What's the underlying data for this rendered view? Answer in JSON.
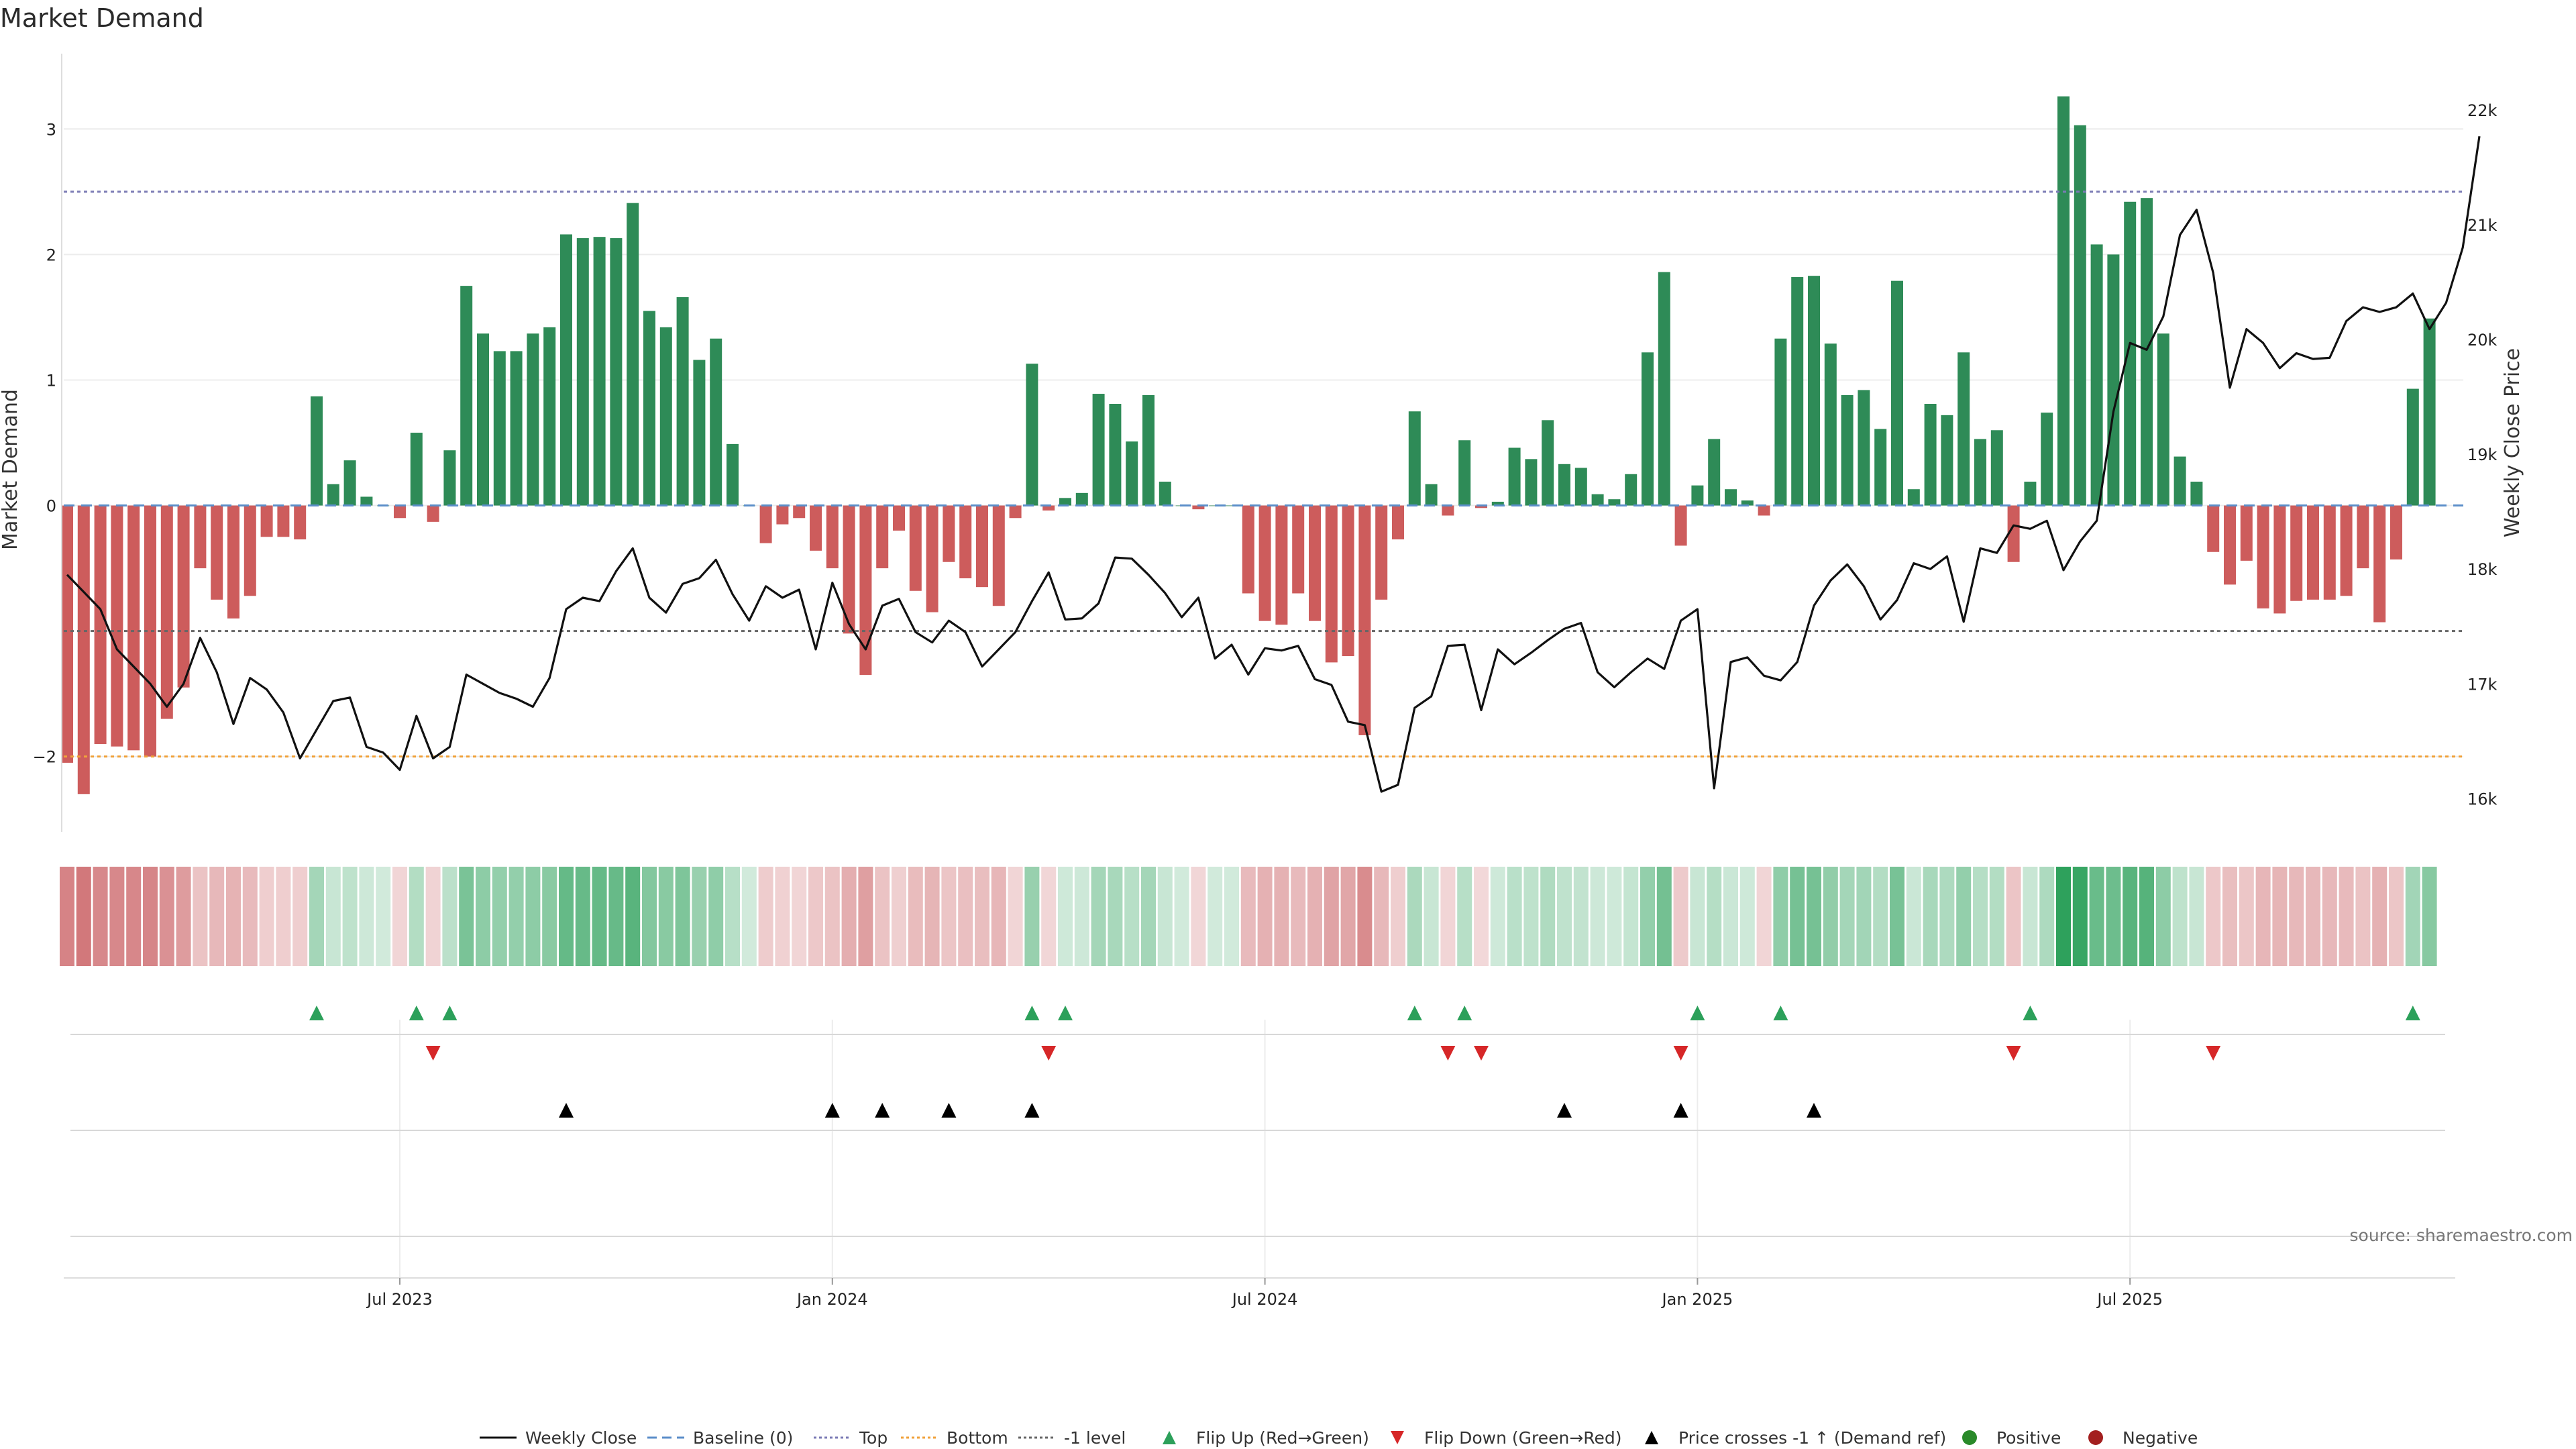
{
  "chart_data": {
    "type": "bar",
    "title": "Market Demand",
    "ylabel_left": "Market Demand",
    "ylabel_right": "Weekly Close Price",
    "source": "source: sharemaestro.com",
    "ylim_left": [
      -2.6,
      3.6
    ],
    "yticks_left": [
      "3",
      "2",
      "1",
      "0",
      "−2"
    ],
    "ytick_values_left": [
      3,
      2,
      1,
      0,
      -2
    ],
    "ylim_right": [
      15710,
      22490
    ],
    "yticks_right": [
      "22k",
      "21k",
      "20k",
      "19k",
      "18k",
      "17k",
      "16k"
    ],
    "ytick_values_right": [
      22000,
      21000,
      20000,
      19000,
      18000,
      17000,
      16000
    ],
    "reference_lines": {
      "top": 2.5,
      "bottom": -2.0,
      "minus_one": -1.0,
      "baseline": 0
    },
    "x_tick_labels": [
      "Jul 2023",
      "Jan 2024",
      "Jul 2024",
      "Jan 2025",
      "Jul 2025"
    ],
    "x_tick_week_index": [
      20,
      46,
      72,
      98,
      124
    ],
    "first_week": "2023-02-17",
    "demand": [
      -2.05,
      -2.3,
      -1.9,
      -1.92,
      -1.95,
      -2.0,
      -1.7,
      -1.45,
      -0.5,
      -0.75,
      -0.9,
      -0.72,
      -0.25,
      -0.25,
      -0.27,
      0.87,
      0.17,
      0.36,
      0.07,
      0.0,
      -0.1,
      0.58,
      -0.13,
      0.44,
      1.75,
      1.37,
      1.23,
      1.23,
      1.37,
      1.42,
      2.16,
      2.13,
      2.14,
      2.13,
      2.41,
      1.55,
      1.42,
      1.66,
      1.16,
      1.33,
      0.49,
      0.0,
      -0.3,
      -0.15,
      -0.1,
      -0.36,
      -0.5,
      -1.02,
      -1.35,
      -0.5,
      -0.2,
      -0.68,
      -0.85,
      -0.45,
      -0.58,
      -0.65,
      -0.8,
      -0.1,
      1.13,
      -0.04,
      0.06,
      0.1,
      0.89,
      0.81,
      0.51,
      0.88,
      0.19,
      0.0,
      -0.03,
      0.0,
      0.0,
      -0.7,
      -0.92,
      -0.95,
      -0.7,
      -0.92,
      -1.25,
      -1.2,
      -1.83,
      -0.75,
      -0.27,
      0.75,
      0.17,
      -0.08,
      0.52,
      -0.02,
      0.03,
      0.46,
      0.37,
      0.68,
      0.33,
      0.3,
      0.09,
      0.05,
      0.25,
      1.22,
      1.86,
      -0.32,
      0.16,
      0.53,
      0.13,
      0.04,
      -0.08,
      1.33,
      1.82,
      1.83,
      1.29,
      0.88,
      0.92,
      0.61,
      1.79,
      0.13,
      0.81,
      0.72,
      1.22,
      0.53,
      0.6,
      -0.45,
      0.19,
      0.74,
      3.26,
      3.03,
      2.08,
      2.0,
      2.42,
      2.45,
      1.37,
      0.39,
      0.19,
      -0.37,
      -0.63,
      -0.44,
      -0.82,
      -0.86,
      -0.76,
      -0.75,
      -0.75,
      -0.72,
      -0.5,
      -0.93,
      -0.43,
      0.93,
      1.49
    ],
    "weekly_close": [
      17950,
      17800,
      17650,
      17300,
      17150,
      17000,
      16800,
      17000,
      17400,
      17100,
      16650,
      17050,
      16950,
      16750,
      16350,
      16600,
      16850,
      16880,
      16450,
      16400,
      16250,
      16720,
      16350,
      16450,
      17080,
      17000,
      16920,
      16870,
      16800,
      17050,
      17650,
      17750,
      17720,
      17980,
      18180,
      17750,
      17620,
      17870,
      17920,
      18080,
      17780,
      17550,
      17850,
      17750,
      17820,
      17300,
      17880,
      17520,
      17300,
      17680,
      17740,
      17450,
      17360,
      17550,
      17450,
      17150,
      17300,
      17450,
      17720,
      17970,
      17560,
      17570,
      17700,
      18100,
      18090,
      17950,
      17790,
      17580,
      17750,
      17220,
      17340,
      17080,
      17310,
      17290,
      17330,
      17040,
      16990,
      16670,
      16640,
      16060,
      16120,
      16790,
      16890,
      17330,
      17340,
      16770,
      17300,
      17170,
      17270,
      17380,
      17480,
      17530,
      17100,
      16970,
      17100,
      17220,
      17130,
      17550,
      17650,
      16090,
      17190,
      17230,
      17070,
      17030,
      17190,
      17680,
      17900,
      18040,
      17850,
      17560,
      17730,
      18050,
      18000,
      18110,
      17540,
      18180,
      18140,
      18380,
      18350,
      18420,
      17990,
      18240,
      18420,
      19370,
      19970,
      19910,
      20200,
      20910,
      21130,
      20580,
      19580,
      20090,
      19970,
      19750,
      19880,
      19830,
      19840,
      20160,
      20280,
      20240,
      20280,
      20400,
      20090,
      20320,
      20800,
      21770
    ]
  },
  "legend": [
    {
      "label": "Weekly Close",
      "icon": "line",
      "color": "#111111"
    },
    {
      "label": "Baseline (0)",
      "icon": "dash",
      "color": "#5b8ec9"
    },
    {
      "label": "Top",
      "icon": "dotted",
      "color": "#7b7bb5"
    },
    {
      "label": "Bottom",
      "icon": "dotted",
      "color": "#f0a23b"
    },
    {
      "label": "-1 level",
      "icon": "dotted",
      "color": "#666666"
    },
    {
      "label": "Flip Up (Red→Green)",
      "icon": "triangle-up",
      "color": "#2ca05a"
    },
    {
      "label": "Flip Down (Green→Red)",
      "icon": "triangle-down",
      "color": "#d62728"
    },
    {
      "label": "Price crosses -1 ↑ (Demand ref)",
      "icon": "triangle-up",
      "color": "#000000"
    },
    {
      "label": "Positive",
      "icon": "circle",
      "color": "#2a8a2a"
    },
    {
      "label": "Negative",
      "icon": "circle",
      "color": "#a31f1f"
    }
  ],
  "colors": {
    "positive_bar": "#2e8b57",
    "negative_bar": "#cd5c5c",
    "heat_positive": "#2ca05a",
    "heat_negative": "#c44e52"
  }
}
